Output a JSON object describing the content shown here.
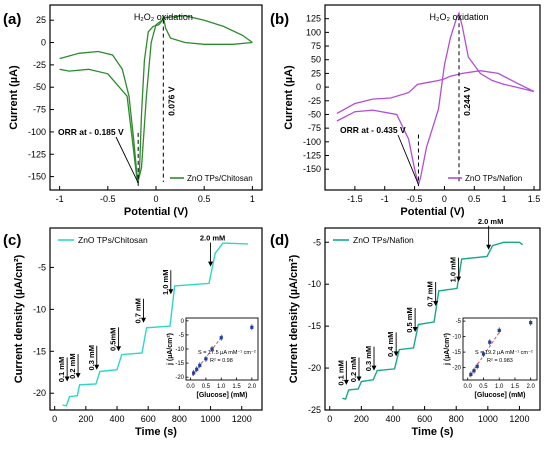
{
  "chart_data": [
    {
      "panel": "(a)",
      "type": "line",
      "ylabel": "Current (µA)",
      "xlabel": "Potential (V)",
      "xlim": [
        -1.1,
        1.1
      ],
      "ylim": [
        -165,
        42
      ],
      "xticks": [
        -1.0,
        -0.5,
        0.0,
        0.5,
        1.0
      ],
      "yticks": [
        -150,
        -125,
        -100,
        -75,
        -50,
        -25,
        0,
        25
      ],
      "legend": "ZnO TPs/Chitosan",
      "legend_position": "bottom-right",
      "annotations": {
        "ox": "H₂O₂ oxidation",
        "orr": "ORR at - 0.185 V",
        "ox_v": "0.076 V"
      },
      "markers": {
        "orr_x": -0.185,
        "orr_y": -157,
        "ox_x": 0.076,
        "ox_y": 29
      },
      "color": "#2e8b2e",
      "series": [
        {
          "x": [
            -1.0,
            -0.8,
            -0.6,
            -0.45,
            -0.35,
            -0.28,
            -0.23,
            -0.2,
            -0.185,
            -0.17,
            -0.15,
            -0.12,
            -0.08,
            -0.03,
            0.03,
            0.06,
            0.076,
            0.1,
            0.15,
            0.3,
            0.5,
            0.8,
            1.0
          ],
          "y": [
            -18,
            -12,
            -10,
            -14,
            -30,
            -60,
            -110,
            -145,
            -157,
            -140,
            -80,
            -20,
            12,
            18,
            20,
            24,
            29,
            16,
            5,
            0,
            -2,
            -2,
            0
          ]
        },
        {
          "x": [
            1.0,
            0.9,
            0.7,
            0.5,
            0.3,
            0.1,
            0.0,
            -0.05,
            -0.1,
            -0.15,
            -0.19,
            -0.2,
            -0.3,
            -0.5,
            -0.7,
            -0.9,
            -1.0
          ],
          "y": [
            0,
            8,
            18,
            25,
            30,
            28,
            20,
            0,
            -60,
            -140,
            -157,
            -150,
            -60,
            -35,
            -30,
            -32,
            -30
          ]
        }
      ]
    },
    {
      "panel": "(b)",
      "type": "line",
      "ylabel": "Current (µA)",
      "xlabel": "Potential (V)",
      "xlim": [
        -2.0,
        1.6
      ],
      "ylim": [
        -188,
        150
      ],
      "xticks": [
        -1.5,
        -1.0,
        -0.5,
        0.0,
        0.5,
        1.0,
        1.5
      ],
      "yticks": [
        -150,
        -125,
        -100,
        -75,
        -50,
        -25,
        0,
        25,
        50,
        75,
        100,
        125
      ],
      "legend": "ZnO TPs/Nafion",
      "legend_position": "bottom-right",
      "annotations": {
        "ox": "H₂O₂ oxidation",
        "orr": "ORR at - 0.435 V",
        "ox_v": "0.244 V"
      },
      "markers": {
        "orr_x": -0.435,
        "orr_y": -178,
        "ox_x": 0.244,
        "ox_y": 135
      },
      "color": "#b24fd6",
      "series": [
        {
          "x": [
            -1.8,
            -1.5,
            -1.2,
            -1.0,
            -0.8,
            -0.6,
            -0.5,
            -0.45,
            -0.435,
            -0.4,
            -0.3,
            -0.1,
            0.0,
            0.1,
            0.2,
            0.244,
            0.3,
            0.4,
            0.6,
            0.8,
            1.0,
            1.2,
            1.5
          ],
          "y": [
            -62,
            -45,
            -42,
            -46,
            -50,
            -95,
            -150,
            -172,
            -178,
            -165,
            -110,
            -40,
            40,
            90,
            125,
            135,
            110,
            55,
            25,
            12,
            5,
            0,
            -8
          ]
        },
        {
          "x": [
            1.5,
            1.2,
            0.9,
            0.6,
            0.3,
            0.1,
            0.0,
            -0.1,
            -0.3,
            -0.45,
            -0.6,
            -0.9,
            -1.2,
            -1.5,
            -1.8
          ],
          "y": [
            -8,
            8,
            25,
            30,
            25,
            20,
            15,
            12,
            8,
            5,
            -10,
            -20,
            -22,
            -30,
            -48
          ]
        }
      ]
    },
    {
      "panel": "(c)",
      "type": "line",
      "ylabel": "Current density (µA/cm²)",
      "xlabel": "Time (s)",
      "xlim": [
        -30,
        1330
      ],
      "ylim": [
        -22,
        -0.3
      ],
      "xticks": [
        0,
        200,
        400,
        600,
        800,
        1000,
        1200
      ],
      "yticks": [
        -20,
        -15,
        -10,
        -5
      ],
      "legend": "ZnO TPs/Chitosan",
      "legend_position": "top-left",
      "color": "#2ed6c8",
      "steps": [
        {
          "t": 80,
          "label": "0.1 mM",
          "ann_y": -18.6
        },
        {
          "t": 150,
          "label": "0.2 mM",
          "ann_y": -18.2
        },
        {
          "t": 270,
          "label": "0.3 mM",
          "ann_y": -17.2
        },
        {
          "t": 410,
          "label": "0.5mM",
          "ann_y": -15.0
        },
        {
          "t": 570,
          "label": "0.7 mM",
          "ann_y": -11.6
        },
        {
          "t": 745,
          "label": "1.0 mM",
          "ann_y": -8.2
        },
        {
          "t": 1000,
          "label": "2.0 mM",
          "ann_y": -4.9
        }
      ],
      "trace": {
        "t": [
          50,
          75,
          95,
          145,
          160,
          265,
          290,
          400,
          430,
          560,
          590,
          740,
          770,
          990,
          1030,
          1080,
          1240
        ],
        "y": [
          -21.4,
          -21.5,
          -20.4,
          -20.3,
          -19.0,
          -18.9,
          -17.4,
          -17.2,
          -15.4,
          -15.2,
          -12.2,
          -12.0,
          -7.2,
          -6.9,
          -3.3,
          -2.1,
          -2.2
        ]
      },
      "inset": {
        "xlabel": "[Glucose] (mM)",
        "ylabel": "j (µA/cm²)",
        "xlim": [
          -0.15,
          2.2
        ],
        "ylim": [
          -21,
          1
        ],
        "xticks": [
          0.0,
          0.5,
          1.0,
          1.5,
          2.0
        ],
        "yticks": [
          -20,
          -15,
          -10,
          -5,
          0
        ],
        "points": [
          {
            "x": 0.1,
            "y": -18.5
          },
          {
            "x": 0.2,
            "y": -17.2
          },
          {
            "x": 0.3,
            "y": -15.8
          },
          {
            "x": 0.5,
            "y": -13.5
          },
          {
            "x": 0.7,
            "y": -10.0
          },
          {
            "x": 1.0,
            "y": -6.0
          },
          {
            "x": 2.0,
            "y": -2.3
          }
        ],
        "fit": {
          "x": [
            0.05,
            1.05
          ],
          "y": [
            -19.4,
            -5.2
          ]
        },
        "equation": "S = 17.5 µA mM⁻¹ cm⁻²",
        "r2": "R² = 0.98"
      }
    },
    {
      "panel": "(d)",
      "type": "line",
      "ylabel": "Current density (µA/cm²)",
      "xlabel": "Time (s)",
      "xlim": [
        -30,
        1330
      ],
      "ylim": [
        -25,
        -3.3
      ],
      "xticks": [
        0,
        200,
        400,
        600,
        800,
        1000,
        1200
      ],
      "yticks": [
        -25,
        -20,
        -15,
        -10,
        -5
      ],
      "legend": "ZnO TPs/Nafion",
      "legend_position": "top-left",
      "color": "#14a88c",
      "steps": [
        {
          "t": 105,
          "label": "0.1 mM",
          "ann_y": -22.0
        },
        {
          "t": 185,
          "label": "0.2 mM",
          "ann_y": -21.6
        },
        {
          "t": 280,
          "label": "0.3 mM",
          "ann_y": -20.3
        },
        {
          "t": 420,
          "label": "0.4 mM",
          "ann_y": -18.6
        },
        {
          "t": 540,
          "label": "0.5 mM",
          "ann_y": -15.7
        },
        {
          "t": 670,
          "label": "0.7 mM",
          "ann_y": -12.6
        },
        {
          "t": 815,
          "label": "1.0 mM",
          "ann_y": -9.7
        },
        {
          "t": 1005,
          "label": "2.0 mM",
          "ann_y": -5.9
        }
      ],
      "trace": {
        "t": [
          80,
          100,
          120,
          180,
          200,
          275,
          300,
          410,
          440,
          530,
          560,
          660,
          690,
          805,
          835,
          995,
          1030,
          1100,
          1200,
          1220
        ],
        "y": [
          -23.6,
          -23.7,
          -22.6,
          -22.5,
          -21.6,
          -21.4,
          -20.3,
          -20.1,
          -17.8,
          -17.6,
          -14.8,
          -14.5,
          -10.8,
          -10.5,
          -7.0,
          -6.7,
          -5.4,
          -5.0,
          -5.0,
          -5.3
        ]
      },
      "inset": {
        "xlabel": "[Glucose] (mM)",
        "ylabel": "j (µA/cm²)",
        "xlim": [
          -0.15,
          2.2
        ],
        "ylim": [
          -24,
          -4
        ],
        "xticks": [
          0.0,
          0.5,
          1.0,
          1.5,
          2.0
        ],
        "yticks": [
          -20,
          -15,
          -10,
          -5
        ],
        "points": [
          {
            "x": 0.1,
            "y": -22.2
          },
          {
            "x": 0.2,
            "y": -21.0
          },
          {
            "x": 0.3,
            "y": -19.6
          },
          {
            "x": 0.5,
            "y": -15.6
          },
          {
            "x": 0.7,
            "y": -11.8
          },
          {
            "x": 1.0,
            "y": -8.0
          },
          {
            "x": 2.0,
            "y": -5.5
          }
        ],
        "fit": {
          "x": [
            0.05,
            1.05
          ],
          "y": [
            -22.9,
            -7.9
          ]
        },
        "equation": "S = 19.2 µA mM⁻¹ cm⁻²",
        "r2": "R² = 0.983"
      }
    }
  ]
}
